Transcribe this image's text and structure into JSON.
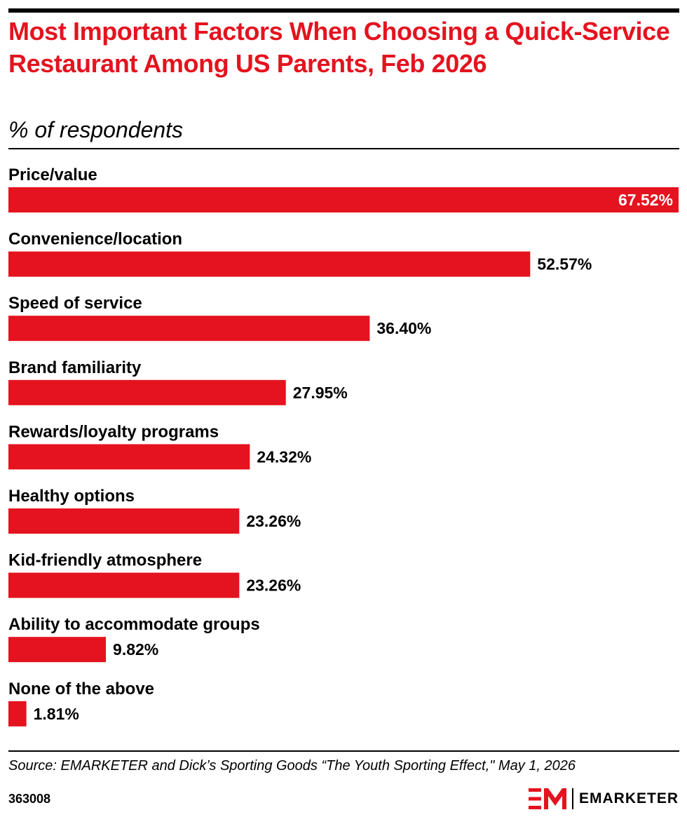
{
  "header": {
    "title": "Most Important Factors When Choosing a Quick-Service Restaurant Among US Parents, Feb 2026",
    "subtitle": "% of respondents"
  },
  "chart_data": {
    "type": "bar",
    "orientation": "horizontal",
    "title": "Most Important Factors When Choosing a Quick-Service Restaurant Among US Parents, Feb 2026",
    "subtitle": "% of respondents",
    "categories": [
      "Price/value",
      "Convenience/location",
      "Speed of service",
      "Brand familiarity",
      "Rewards/loyalty programs",
      "Healthy options",
      "Kid-friendly atmosphere",
      "Ability to accommodate groups",
      "None of the above"
    ],
    "values": [
      67.52,
      52.57,
      36.4,
      27.95,
      24.32,
      23.26,
      23.26,
      9.82,
      1.81
    ],
    "value_labels": [
      "67.52%",
      "52.57%",
      "36.40%",
      "27.95%",
      "24.32%",
      "23.26%",
      "23.26%",
      "9.82%",
      "1.81%"
    ],
    "xlim": [
      0,
      67.52
    ],
    "grid": false,
    "legend": "none",
    "bar_color": "#e4131f"
  },
  "footer": {
    "source": "Source: EMARKETER and Dick’s Sporting Goods “The Youth Sporting Effect,\" May 1, 2026",
    "chart_id": "363008",
    "brand": "EMARKETER"
  },
  "colors": {
    "accent": "#e4131f",
    "text": "#000000",
    "label_on_bar": "#ffffff"
  },
  "icons": {
    "brand_logo": "em-logo-icon"
  }
}
